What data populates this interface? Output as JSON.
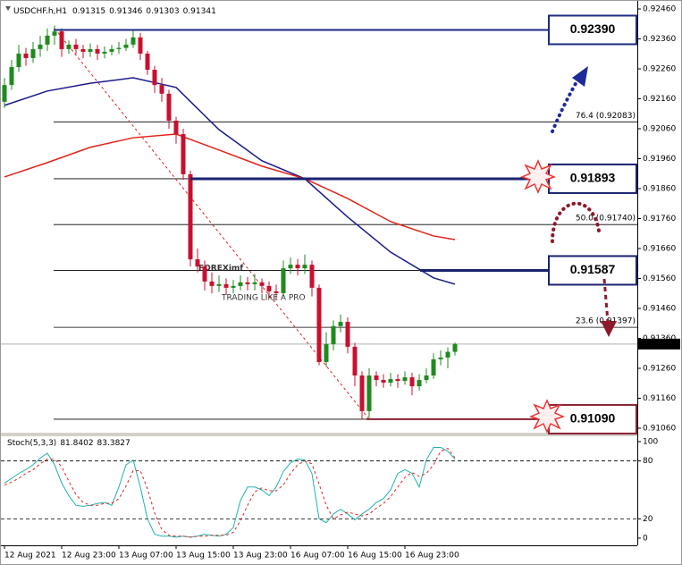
{
  "chart_data": [
    {
      "type": "candlestick",
      "title": "USDCHF.h,H1",
      "categories": [
        "12 Aug 2021",
        null,
        null,
        null,
        null,
        null,
        null,
        null,
        "12 Aug 23:00",
        null,
        null,
        null,
        null,
        null,
        null,
        null,
        "13 Aug 07:00",
        null,
        null,
        null,
        null,
        null,
        null,
        null,
        "13 Aug 15:00",
        null,
        null,
        null,
        null,
        null,
        null,
        null,
        "13 Aug 23:00",
        null,
        null,
        null,
        null,
        null,
        null,
        null,
        "16 Aug 07:00",
        null,
        null,
        null,
        null,
        null,
        null,
        null,
        "16 Aug 15:00",
        null,
        null,
        null,
        null,
        null,
        null,
        null,
        "16 Aug 23:00",
        null,
        null,
        null,
        null,
        null,
        null,
        null
      ],
      "open": [
        0.9215,
        0.92206,
        0.92266,
        0.92311,
        0.92296,
        0.92326,
        0.92341,
        0.92371,
        0.92385,
        0.92326,
        0.92341,
        0.92326,
        0.92317,
        0.92326,
        0.92311,
        0.92317,
        0.92326,
        0.9233,
        0.92341,
        0.92365,
        0.92311,
        0.92257,
        0.92206,
        0.92177,
        0.92087,
        0.92042,
        0.91908,
        0.91624,
        0.916,
        0.9155,
        0.91535,
        0.91541,
        0.91529,
        0.91535,
        0.91547,
        0.91541,
        0.91547,
        0.91535,
        0.91517,
        0.91511,
        0.91594,
        0.91606,
        0.91594,
        0.91606,
        0.91529,
        0.91281,
        0.91341,
        0.91401,
        0.91415,
        0.91332,
        0.91236,
        0.91117,
        0.91236,
        0.91221,
        0.91212,
        0.91224,
        0.91218,
        0.9123,
        0.912,
        0.91221,
        0.91236,
        0.9129,
        0.91296,
        0.91315
      ],
      "high": [
        0.9223,
        0.9229,
        0.9234,
        0.9233,
        0.9235,
        0.9237,
        0.92395,
        0.92405,
        0.92395,
        0.92355,
        0.9236,
        0.9234,
        0.92345,
        0.9234,
        0.92335,
        0.9234,
        0.9235,
        0.9236,
        0.9239,
        0.9238,
        0.9232,
        0.9227,
        0.9223,
        0.9219,
        0.921,
        0.9206,
        0.9192,
        0.9166,
        0.9162,
        0.9158,
        0.9157,
        0.9156,
        0.91555,
        0.9157,
        0.91565,
        0.91575,
        0.9156,
        0.9155,
        0.9154,
        0.9162,
        0.9163,
        0.91625,
        0.9164,
        0.9162,
        0.9154,
        0.9138,
        0.9142,
        0.9144,
        0.9143,
        0.91345,
        0.9125,
        0.9126,
        0.9125,
        0.9124,
        0.91245,
        0.9124,
        0.9125,
        0.91245,
        0.9124,
        0.9126,
        0.9131,
        0.9132,
        0.9133,
        0.91346
      ],
      "low": [
        0.9213,
        0.9219,
        0.9225,
        0.9227,
        0.9228,
        0.923,
        0.9232,
        0.9234,
        0.923,
        0.9231,
        0.9231,
        0.92295,
        0.923,
        0.9229,
        0.92295,
        0.92305,
        0.9231,
        0.9232,
        0.9233,
        0.9229,
        0.9224,
        0.9218,
        0.9215,
        0.9206,
        0.9201,
        0.9189,
        0.916,
        0.9158,
        0.9152,
        0.9151,
        0.91515,
        0.91505,
        0.9151,
        0.9152,
        0.9152,
        0.9152,
        0.9151,
        0.91495,
        0.9149,
        0.915,
        0.91575,
        0.9157,
        0.91575,
        0.915,
        0.9127,
        0.91265,
        0.9132,
        0.9138,
        0.9131,
        0.912,
        0.9109,
        0.91095,
        0.912,
        0.91195,
        0.912,
        0.91195,
        0.91205,
        0.9117,
        0.91185,
        0.9121,
        0.91225,
        0.9127,
        0.9126,
        0.91303
      ],
      "close": [
        0.92206,
        0.92266,
        0.92311,
        0.92296,
        0.92326,
        0.92341,
        0.92371,
        0.92385,
        0.92326,
        0.92341,
        0.92326,
        0.92317,
        0.92326,
        0.92311,
        0.92317,
        0.92326,
        0.9233,
        0.92341,
        0.92365,
        0.92311,
        0.92257,
        0.92206,
        0.92177,
        0.92087,
        0.92042,
        0.91908,
        0.91624,
        0.916,
        0.9155,
        0.91535,
        0.91541,
        0.91529,
        0.91535,
        0.91547,
        0.91541,
        0.91547,
        0.91535,
        0.91517,
        0.91511,
        0.91594,
        0.91606,
        0.91594,
        0.91606,
        0.91529,
        0.91281,
        0.91341,
        0.91401,
        0.91415,
        0.91332,
        0.91236,
        0.91117,
        0.91236,
        0.91221,
        0.91212,
        0.91224,
        0.91218,
        0.9123,
        0.912,
        0.91221,
        0.91236,
        0.9129,
        0.91296,
        0.91315,
        0.91341
      ],
      "up_color": "#1f8a1f",
      "down_color": "#c8102e",
      "ylim": [
        0.91048,
        0.92475
      ],
      "yticks": [
        {
          "value": 0.9246,
          "label": "0.92460"
        },
        {
          "value": 0.9236,
          "label": "0.92360"
        },
        {
          "value": 0.9226,
          "label": "0.92260"
        },
        {
          "value": 0.9216,
          "label": "0.92160"
        },
        {
          "value": 0.9206,
          "label": "0.92060"
        },
        {
          "value": 0.9196,
          "label": "0.91960"
        },
        {
          "value": 0.9186,
          "label": "0.91860"
        },
        {
          "value": 0.9176,
          "label": "0.91760"
        },
        {
          "value": 0.9166,
          "label": "0.91660"
        },
        {
          "value": 0.9156,
          "label": "0.91560"
        },
        {
          "value": 0.9146,
          "label": "0.91460"
        },
        {
          "value": 0.9136,
          "label": "0.91360"
        },
        {
          "value": 0.9126,
          "label": "0.91260"
        },
        {
          "value": 0.9116,
          "label": "0.91160"
        },
        {
          "value": 0.9106,
          "label": "0.91060"
        }
      ],
      "moving_averages": [
        {
          "color": "#1a1a8c",
          "x": [
            0,
            6,
            12,
            18,
            24,
            30,
            36,
            42,
            48,
            54,
            60,
            63
          ],
          "values": [
            0.92138,
            0.92186,
            0.92212,
            0.9223,
            0.92198,
            0.92057,
            0.91953,
            0.91893,
            0.91765,
            0.91648,
            0.91562,
            0.91541
          ]
        },
        {
          "color": "#e2231a",
          "x": [
            0,
            6,
            12,
            18,
            24,
            30,
            36,
            42,
            48,
            54,
            60,
            63
          ],
          "values": [
            0.91899,
            0.91947,
            0.91998,
            0.9203,
            0.92042,
            0.91989,
            0.91935,
            0.91893,
            0.91827,
            0.9175,
            0.91702,
            0.9169
          ]
        }
      ],
      "fib": [
        {
          "value": 0.92083,
          "label": "76.4 (0.92083)"
        },
        {
          "value": 0.91893
        },
        {
          "value": 0.9174,
          "label": "50.0 (0.91740)"
        },
        {
          "value": 0.91587
        },
        {
          "value": 0.91397,
          "label": "23.6 (0.91397)"
        },
        {
          "value": 0.9109
        }
      ],
      "trendline": {
        "x": [
          7,
          51
        ],
        "values": [
          0.92395,
          0.9109
        ]
      },
      "levels": [
        {
          "value": 0.9239,
          "label": "0.92390",
          "color": "#1c2a80"
        },
        {
          "value": 0.91893,
          "label": "0.91893",
          "color": "#1a2370"
        },
        {
          "value": 0.91587,
          "label": "0.91587",
          "color": "#1a2370"
        },
        {
          "value": 0.9109,
          "label": "0.91090",
          "color": "#8b2035"
        }
      ],
      "watermark": {
        "text": "FOREXimf",
        "tagline": "TRADING LIKE A PRO"
      }
    },
    {
      "type": "line",
      "title": "Stoch(5,3,3)",
      "series": [
        {
          "color": "#20b2aa",
          "values": [
            57,
            62,
            67,
            71,
            76,
            83,
            88,
            76,
            57,
            44,
            34,
            33,
            34,
            36,
            37,
            34,
            53,
            76,
            81,
            53,
            20,
            4,
            2,
            2,
            1,
            2,
            1,
            2,
            4,
            3,
            2,
            4,
            11,
            39,
            53,
            53,
            50,
            44,
            53,
            69,
            78,
            82,
            81,
            67,
            20,
            16,
            25,
            30,
            25,
            19,
            25,
            30,
            37,
            41,
            50,
            67,
            71,
            67,
            53,
            81,
            94,
            94,
            90,
            81.8402
          ]
        },
        {
          "color": "#e2231a",
          "dashed": true,
          "values": [
            55,
            58,
            62,
            67,
            71,
            77,
            82,
            82,
            74,
            59,
            45,
            37,
            34,
            34,
            36,
            36,
            41,
            54,
            70,
            70,
            51,
            26,
            9,
            3,
            2,
            2,
            1,
            2,
            2,
            3,
            3,
            3,
            6,
            18,
            34,
            48,
            52,
            49,
            49,
            55,
            67,
            76,
            80,
            77,
            56,
            34,
            20,
            24,
            27,
            25,
            23,
            25,
            31,
            36,
            43,
            53,
            63,
            68,
            64,
            67,
            76,
            90,
            93,
            83.3827
          ]
        }
      ],
      "ylim": [
        -5.6,
        103.7
      ],
      "yticks": [
        100,
        80,
        20,
        0
      ],
      "levels": [
        80,
        20
      ]
    }
  ]
}
